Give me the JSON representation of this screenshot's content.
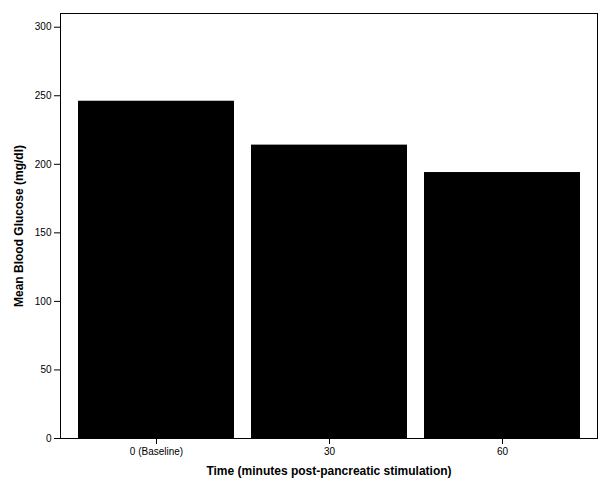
{
  "chart_data": {
    "type": "bar",
    "categories": [
      "0 (Baseline)",
      "30",
      "60"
    ],
    "values": [
      246,
      214,
      194
    ],
    "color": "#000000",
    "x_label": "Time (minutes post-pancreatic stimulation)",
    "y_label": "Mean Blood Glucose (mg/dl)",
    "ylim": [
      0,
      310
    ],
    "yticks": [
      0,
      50,
      100,
      150,
      200,
      250,
      300
    ],
    "grid": false
  }
}
